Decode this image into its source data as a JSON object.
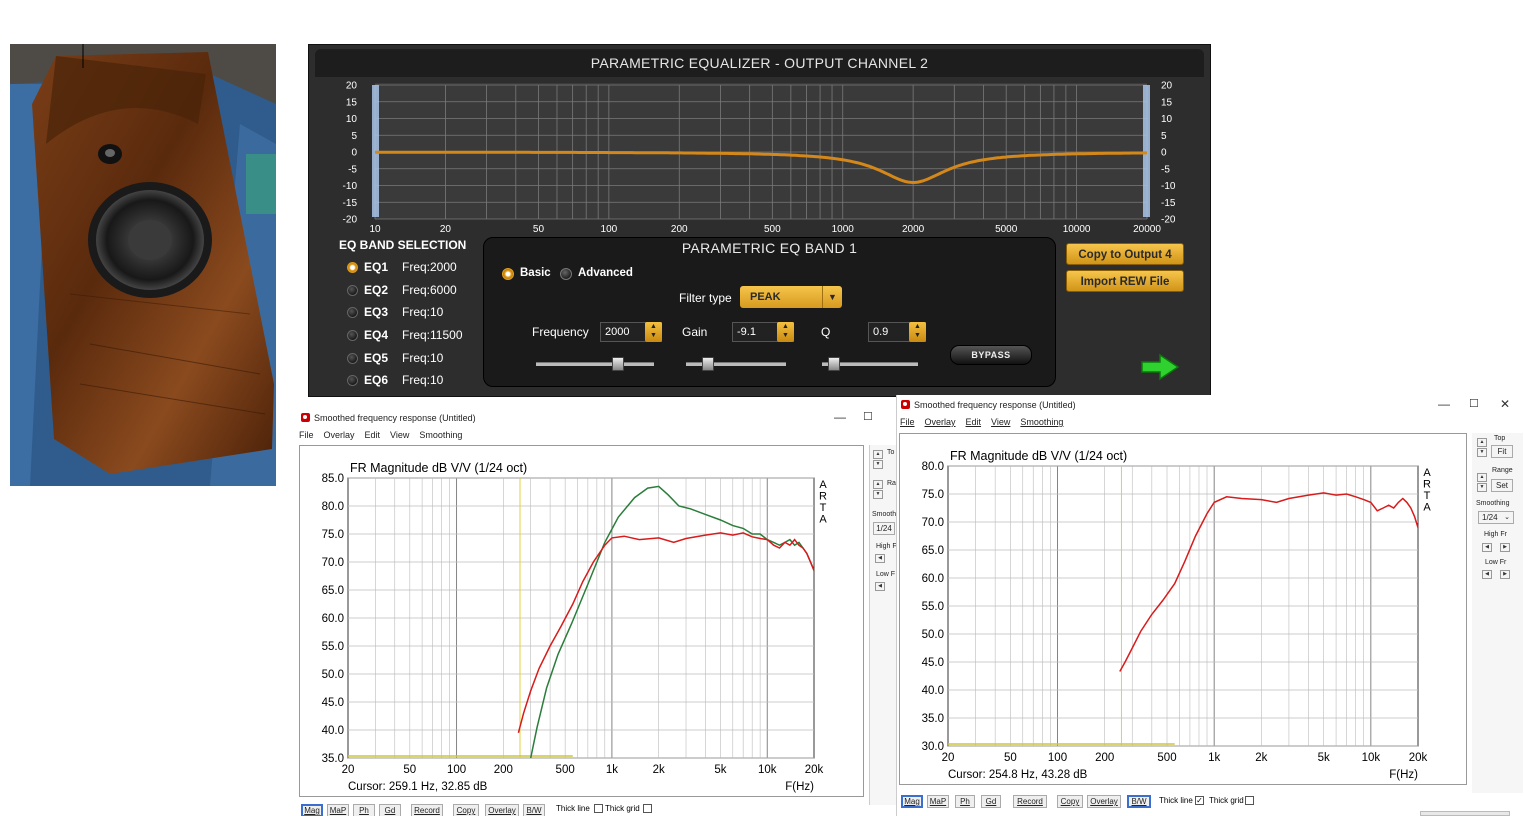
{
  "eq": {
    "title": "PARAMETRIC EQUALIZER - OUTPUT CHANNEL 2",
    "y_ticks": [
      "20",
      "15",
      "10",
      "5",
      "0",
      "-5",
      "-10",
      "-15",
      "-20"
    ],
    "x_ticks": [
      "10",
      "20",
      "50",
      "100",
      "200",
      "500",
      "1000",
      "2000",
      "5000",
      "10000",
      "20000"
    ],
    "curve_color": "#d4881a",
    "band_selection_label": "EQ BAND SELECTION",
    "bands": [
      {
        "name": "EQ1",
        "freq": "Freq:2000",
        "selected": true
      },
      {
        "name": "EQ2",
        "freq": "Freq:6000",
        "selected": false
      },
      {
        "name": "EQ3",
        "freq": "Freq:10",
        "selected": false
      },
      {
        "name": "EQ4",
        "freq": "Freq:11500",
        "selected": false
      },
      {
        "name": "EQ5",
        "freq": "Freq:10",
        "selected": false
      },
      {
        "name": "EQ6",
        "freq": "Freq:10",
        "selected": false
      }
    ],
    "band_panel": {
      "title": "PARAMETRIC EQ BAND 1",
      "mode_basic": "Basic",
      "mode_advanced": "Advanced",
      "filter_type_label": "Filter type",
      "filter_type_value": "PEAK",
      "frequency_label": "Frequency",
      "frequency_value": "2000",
      "gain_label": "Gain",
      "gain_value": "-9.1",
      "q_label": "Q",
      "q_value": "0.9",
      "bypass_label": "BYPASS"
    },
    "copy_button": "Copy to Output 4",
    "import_button": "Import REW File",
    "peq": {
      "freq": 2000,
      "gain": -9.1,
      "q": 0.9
    }
  },
  "arta_left": {
    "title": "Smoothed frequency response (Untitled)",
    "menu": [
      "File",
      "Overlay",
      "Edit",
      "View",
      "Smoothing"
    ],
    "win_min": "—",
    "win_max": "☐",
    "plot_title": "FR Magnitude dB V/V (1/24 oct)",
    "arta_logo": [
      "A",
      "R",
      "T",
      "A"
    ],
    "cursor": "Cursor: 259.1 Hz, 32.85 dB",
    "xunit": "F(Hz)",
    "y_tick_labels": [
      "85.0",
      "80.0",
      "75.0",
      "70.0",
      "65.0",
      "60.0",
      "55.0",
      "50.0",
      "45.0",
      "40.0",
      "35.0"
    ],
    "x_tick_labels": [
      "20",
      "50",
      "100",
      "200",
      "500",
      "1k",
      "2k",
      "5k",
      "10k",
      "20k"
    ],
    "side_labels": [
      "To",
      "Ra",
      "Smooth",
      "1/24",
      "High F",
      "Low F"
    ],
    "toolbar": [
      "Mag",
      "MaP",
      "Ph",
      "Gd",
      "Record",
      "Copy",
      "Overlay",
      "B/W"
    ],
    "thick_line": "Thick line",
    "thick_grid": "Thick grid"
  },
  "arta_right": {
    "title": "Smoothed frequency response (Untitled)",
    "menu": [
      "File",
      "Overlay",
      "Edit",
      "View",
      "Smoothing"
    ],
    "win_min": "—",
    "win_max": "☐",
    "win_close": "✕",
    "plot_title": "FR Magnitude dB V/V (1/24 oct)",
    "arta_logo": [
      "A",
      "R",
      "T",
      "A"
    ],
    "cursor": "Cursor: 254.8 Hz, 43.28 dB",
    "xunit": "F(Hz)",
    "y_tick_labels": [
      "80.0",
      "75.0",
      "70.0",
      "65.0",
      "60.0",
      "55.0",
      "50.0",
      "45.0",
      "40.0",
      "35.0",
      "30.0"
    ],
    "x_tick_labels": [
      "20",
      "50",
      "100",
      "200",
      "500",
      "1k",
      "2k",
      "5k",
      "10k",
      "20k"
    ],
    "side": {
      "top_label": "Top",
      "fit_button": "Fit",
      "range_label": "Range",
      "set_button": "Set",
      "smoothing_label": "Smoothing",
      "smoothing_value": "1/24",
      "high_fr_label": "High Fr",
      "low_fr_label": "Low Fr"
    },
    "toolbar": [
      "Mag",
      "MaP",
      "Ph",
      "Gd",
      "Record",
      "Copy",
      "Overlay",
      "B/W"
    ],
    "thick_line": "Thick line",
    "thick_grid": "Thick grid",
    "thick_line_checked": true,
    "thick_grid_checked": false
  },
  "chart_data": [
    {
      "type": "line",
      "title": "FR Magnitude dB V/V (1/24 oct)",
      "xlabel": "F(Hz)",
      "ylabel": "",
      "xscale": "log",
      "xlim": [
        20,
        20000
      ],
      "ylim": [
        35,
        85
      ],
      "series": [
        {
          "color": "#2a7d3a",
          "x": [
            300,
            330,
            380,
            450,
            550,
            700,
            900,
            1100,
            1400,
            1700,
            2000,
            2300,
            2700,
            3200,
            4000,
            5000,
            6000,
            7000,
            8000,
            9000,
            10000,
            11000,
            12000,
            13000,
            14000,
            15000,
            16000,
            17000,
            18000,
            19000,
            20000
          ],
          "y": [
            35.0,
            40.5,
            47.5,
            53.5,
            59.0,
            66.0,
            73.5,
            78.0,
            81.5,
            83.2,
            83.5,
            82.0,
            80.0,
            79.5,
            78.5,
            77.5,
            76.5,
            76.0,
            75.0,
            75.0,
            74.0,
            73.5,
            73.0,
            73.5,
            74.0,
            73.0,
            73.5,
            72.5,
            71.5,
            70.0,
            68.5
          ]
        },
        {
          "color": "#d81b1b",
          "x": [
            250,
            270,
            300,
            340,
            400,
            470,
            560,
            650,
            760,
            900,
            1000,
            1200,
            1500,
            2000,
            2500,
            3000,
            4000,
            5000,
            6000,
            7000,
            8000,
            9000,
            10000,
            11000,
            12000,
            13000,
            14000,
            15000,
            16000,
            17000,
            18000,
            19000,
            20000
          ],
          "y": [
            39.5,
            43.0,
            47.0,
            51.0,
            55.0,
            58.5,
            62.5,
            66.5,
            70.0,
            73.0,
            74.3,
            74.6,
            74.0,
            74.3,
            73.5,
            74.2,
            74.8,
            75.2,
            74.8,
            75.2,
            74.5,
            74.2,
            74.0,
            73.0,
            72.5,
            73.5,
            73.0,
            74.0,
            73.0,
            72.5,
            71.5,
            70.0,
            68.5
          ]
        }
      ]
    },
    {
      "type": "line",
      "title": "FR Magnitude dB V/V (1/24 oct)",
      "xlabel": "F(Hz)",
      "ylabel": "",
      "xscale": "log",
      "xlim": [
        20,
        20000
      ],
      "ylim": [
        30,
        80
      ],
      "series": [
        {
          "color": "#d81b1b",
          "x": [
            250,
            270,
            300,
            340,
            400,
            470,
            560,
            650,
            760,
            900,
            1000,
            1200,
            1500,
            2000,
            2500,
            3000,
            4000,
            5000,
            6000,
            7000,
            8000,
            9000,
            10000,
            11000,
            12000,
            13000,
            14000,
            15000,
            16000,
            17000,
            18000,
            19000,
            20000
          ],
          "y": [
            43.3,
            45.0,
            47.5,
            50.5,
            53.5,
            56.0,
            59.0,
            63.0,
            67.5,
            71.5,
            73.5,
            74.5,
            74.2,
            74.0,
            73.5,
            74.2,
            74.8,
            75.2,
            74.8,
            75.0,
            74.5,
            74.0,
            73.5,
            72.0,
            72.5,
            73.0,
            72.5,
            73.5,
            74.2,
            73.5,
            72.5,
            71.0,
            69.0
          ]
        }
      ]
    }
  ]
}
